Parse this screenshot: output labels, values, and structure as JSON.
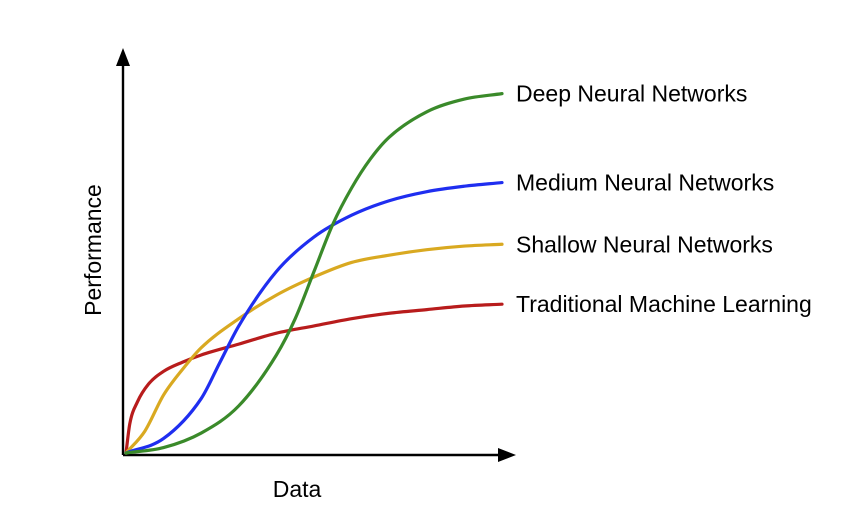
{
  "chart_data": {
    "type": "line",
    "title": "",
    "xlabel": "Data",
    "ylabel": "Performance",
    "xlim": [
      0,
      100
    ],
    "ylim": [
      0,
      100
    ],
    "x_ticks_shown": false,
    "y_ticks_shown": false,
    "grid": false,
    "legend": "inline at line ends (right)",
    "series": [
      {
        "name": "Deep Neural Networks",
        "color": "#3a8a2a",
        "x": [
          0,
          10,
          20,
          30,
          40,
          45,
          50,
          55,
          60,
          65,
          70,
          80,
          90,
          100
        ],
        "y": [
          0,
          1.5,
          5.5,
          13,
          27,
          37,
          50,
          63,
          73,
          81,
          87,
          94,
          97.5,
          99
        ]
      },
      {
        "name": "Medium Neural Networks",
        "color": "#1f2ef0",
        "x": [
          0,
          10,
          20,
          25,
          30,
          40,
          50,
          60,
          70,
          80,
          90,
          100
        ],
        "y": [
          0,
          4,
          15,
          25,
          35,
          50,
          59.5,
          65.5,
          69.5,
          72,
          73.5,
          74.5
        ]
      },
      {
        "name": "Shallow Neural Networks",
        "color": "#d9a921",
        "x": [
          0,
          5,
          10,
          15,
          20,
          30,
          40,
          50,
          60,
          70,
          80,
          90,
          100
        ],
        "y": [
          0,
          6,
          16,
          23,
          29,
          37,
          43.5,
          48.5,
          52.5,
          54.5,
          56,
          57,
          57.5
        ]
      },
      {
        "name": "Traditional Machine Learning",
        "color": "#b81c1c",
        "x": [
          0,
          1,
          3,
          6,
          10,
          15,
          20,
          30,
          40,
          50,
          60,
          70,
          80,
          90,
          100
        ],
        "y": [
          0,
          8,
          14,
          19,
          22.5,
          25,
          27,
          30,
          33,
          35,
          37,
          38.5,
          39.5,
          40.5,
          41
        ]
      }
    ]
  }
}
